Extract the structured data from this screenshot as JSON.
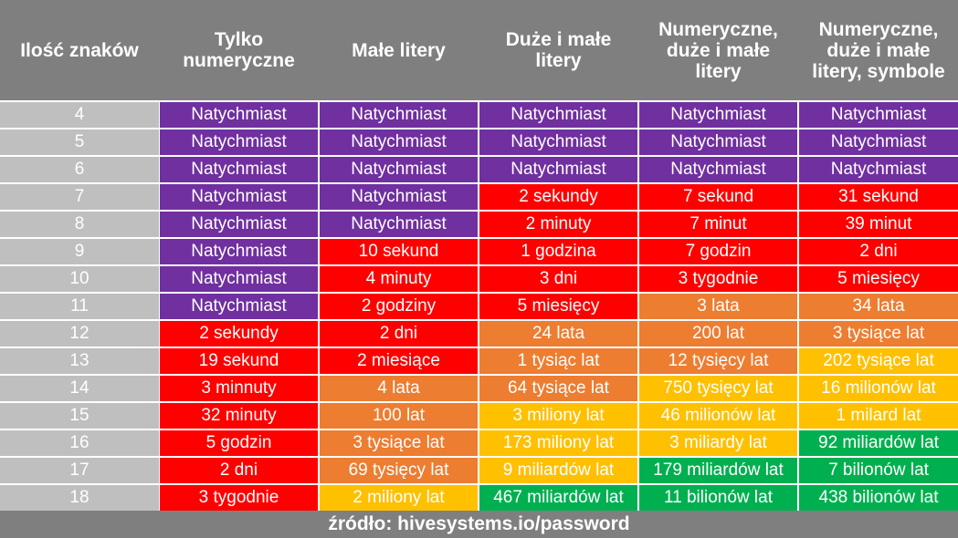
{
  "chart_data": {
    "type": "table",
    "colors": {
      "purple": "#7030a0",
      "red": "#ff0000",
      "orange": "#ed7d31",
      "yellow": "#ffc000",
      "green": "#00b050",
      "label_bg": "#bfbfbf",
      "header_bg": "#7f7f7f"
    },
    "columns": [
      "Ilość znaków",
      "Tylko numeryczne",
      "Małe litery",
      "Duże i małe litery",
      "Numeryczne, duże i małe litery",
      "Numeryczne, duże i małe litery, symbole"
    ],
    "rows": [
      {
        "n": "4",
        "cells": [
          [
            "Natychmiast",
            "purple"
          ],
          [
            "Natychmiast",
            "purple"
          ],
          [
            "Natychmiast",
            "purple"
          ],
          [
            "Natychmiast",
            "purple"
          ],
          [
            "Natychmiast",
            "purple"
          ]
        ]
      },
      {
        "n": "5",
        "cells": [
          [
            "Natychmiast",
            "purple"
          ],
          [
            "Natychmiast",
            "purple"
          ],
          [
            "Natychmiast",
            "purple"
          ],
          [
            "Natychmiast",
            "purple"
          ],
          [
            "Natychmiast",
            "purple"
          ]
        ]
      },
      {
        "n": "6",
        "cells": [
          [
            "Natychmiast",
            "purple"
          ],
          [
            "Natychmiast",
            "purple"
          ],
          [
            "Natychmiast",
            "purple"
          ],
          [
            "Natychmiast",
            "purple"
          ],
          [
            "Natychmiast",
            "purple"
          ]
        ]
      },
      {
        "n": "7",
        "cells": [
          [
            "Natychmiast",
            "purple"
          ],
          [
            "Natychmiast",
            "purple"
          ],
          [
            "2 sekundy",
            "red"
          ],
          [
            "7 sekund",
            "red"
          ],
          [
            "31 sekund",
            "red"
          ]
        ]
      },
      {
        "n": "8",
        "cells": [
          [
            "Natychmiast",
            "purple"
          ],
          [
            "Natychmiast",
            "purple"
          ],
          [
            "2 minuty",
            "red"
          ],
          [
            "7 minut",
            "red"
          ],
          [
            "39 minut",
            "red"
          ]
        ]
      },
      {
        "n": "9",
        "cells": [
          [
            "Natychmiast",
            "purple"
          ],
          [
            "10 sekund",
            "red"
          ],
          [
            "1 godzina",
            "red"
          ],
          [
            "7 godzin",
            "red"
          ],
          [
            "2 dni",
            "red"
          ]
        ]
      },
      {
        "n": "10",
        "cells": [
          [
            "Natychmiast",
            "purple"
          ],
          [
            "4 minuty",
            "red"
          ],
          [
            "3 dni",
            "red"
          ],
          [
            "3 tygodnie",
            "red"
          ],
          [
            "5 miesięcy",
            "red"
          ]
        ]
      },
      {
        "n": "11",
        "cells": [
          [
            "Natychmiast",
            "purple"
          ],
          [
            "2 godziny",
            "red"
          ],
          [
            "5 miesięcy",
            "red"
          ],
          [
            "3 lata",
            "orange"
          ],
          [
            "34 lata",
            "orange"
          ]
        ]
      },
      {
        "n": "12",
        "cells": [
          [
            "2 sekundy",
            "red"
          ],
          [
            "2 dni",
            "red"
          ],
          [
            "24 lata",
            "orange"
          ],
          [
            "200 lat",
            "orange"
          ],
          [
            "3 tysiące lat",
            "orange"
          ]
        ]
      },
      {
        "n": "13",
        "cells": [
          [
            "19 sekund",
            "red"
          ],
          [
            "2 miesiące",
            "red"
          ],
          [
            "1 tysiąc lat",
            "orange"
          ],
          [
            "12 tysięcy lat",
            "orange"
          ],
          [
            "202 tysiące lat",
            "yellow"
          ]
        ]
      },
      {
        "n": "14",
        "cells": [
          [
            "3 minnuty",
            "red"
          ],
          [
            "4 lata",
            "orange"
          ],
          [
            "64 tysiące lat",
            "orange"
          ],
          [
            "750 tysięcy lat",
            "yellow"
          ],
          [
            "16 milionów lat",
            "yellow"
          ]
        ]
      },
      {
        "n": "15",
        "cells": [
          [
            "32 minuty",
            "red"
          ],
          [
            "100 lat",
            "orange"
          ],
          [
            "3 miliony lat",
            "yellow"
          ],
          [
            "46 milionów lat",
            "yellow"
          ],
          [
            "1 milard lat",
            "yellow"
          ]
        ]
      },
      {
        "n": "16",
        "cells": [
          [
            "5 godzin",
            "red"
          ],
          [
            "3 tysiące lat",
            "orange"
          ],
          [
            "173 miliony lat",
            "yellow"
          ],
          [
            "3 miliardy lat",
            "yellow"
          ],
          [
            "92 miliardów lat",
            "green"
          ]
        ]
      },
      {
        "n": "17",
        "cells": [
          [
            "2 dni",
            "red"
          ],
          [
            "69 tysięcy lat",
            "orange"
          ],
          [
            "9 miliardów lat",
            "yellow"
          ],
          [
            "179 miliardów lat",
            "green"
          ],
          [
            "7 bilionów lat",
            "green"
          ]
        ]
      },
      {
        "n": "18",
        "cells": [
          [
            "3 tygodnie",
            "red"
          ],
          [
            "2 miliony lat",
            "yellow"
          ],
          [
            "467 miliardów lat",
            "green"
          ],
          [
            "11 bilionów lat",
            "green"
          ],
          [
            "438 bilionów lat",
            "green"
          ]
        ]
      }
    ]
  },
  "footer": "źródło: hivesystems.io/password"
}
